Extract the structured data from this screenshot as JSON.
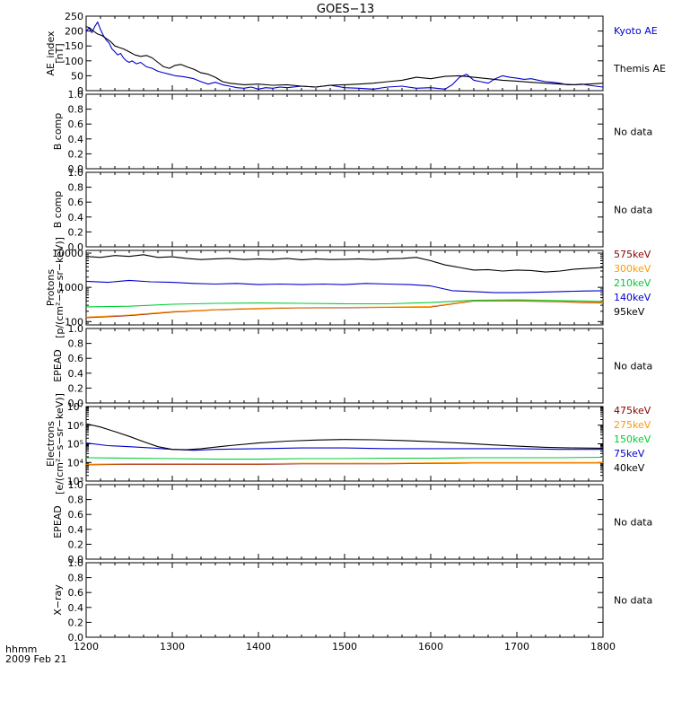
{
  "figure": {
    "title": "GOES−13",
    "time_axis": {
      "label": "hhmm",
      "date": "2009 Feb 21",
      "ticks": [
        "1200",
        "1300",
        "1400",
        "1500",
        "1600",
        "1700",
        "1800"
      ],
      "range_minutes": [
        720,
        1080
      ]
    }
  },
  "chart_data": [
    {
      "id": "ae",
      "type": "line",
      "ylabel_lines": [
        "AE_index",
        "[nT]"
      ],
      "ylim": [
        0,
        250
      ],
      "yticks": [
        "0",
        "50",
        "100",
        "150",
        "200",
        "250"
      ],
      "series": [
        {
          "name": "Kyoto AE",
          "color": "#0000cc",
          "t": [
            720,
            722,
            724,
            726,
            728,
            730,
            732,
            734,
            736,
            738,
            740,
            742,
            744,
            746,
            748,
            750,
            752,
            755,
            758,
            762,
            766,
            770,
            774,
            778,
            782,
            786,
            790,
            795,
            800,
            805,
            810,
            815,
            820,
            825,
            830,
            835,
            840,
            845,
            850,
            855,
            860,
            870,
            880,
            890,
            900,
            910,
            920,
            930,
            940,
            950,
            960,
            970,
            975,
            980,
            985,
            990,
            995,
            1000,
            1005,
            1010,
            1015,
            1020,
            1025,
            1030,
            1035,
            1040,
            1045,
            1050,
            1055,
            1060,
            1065,
            1070,
            1075,
            1080
          ],
          "values": [
            200,
            210,
            195,
            215,
            230,
            205,
            185,
            170,
            160,
            140,
            130,
            120,
            125,
            110,
            100,
            95,
            100,
            90,
            95,
            80,
            75,
            65,
            60,
            55,
            50,
            48,
            45,
            40,
            30,
            22,
            28,
            20,
            15,
            10,
            8,
            12,
            5,
            10,
            8,
            12,
            10,
            15,
            12,
            18,
            10,
            8,
            5,
            12,
            15,
            8,
            10,
            5,
            20,
            45,
            55,
            35,
            30,
            25,
            40,
            50,
            45,
            42,
            38,
            40,
            35,
            30,
            28,
            25,
            20,
            20,
            22,
            18,
            15,
            12
          ]
        },
        {
          "name": "Themis AE",
          "color": "#000000",
          "t": [
            720,
            722,
            725,
            728,
            731,
            734,
            737,
            740,
            743,
            746,
            750,
            754,
            758,
            762,
            766,
            770,
            774,
            778,
            782,
            786,
            790,
            795,
            800,
            805,
            810,
            815,
            820,
            830,
            840,
            850,
            860,
            870,
            880,
            890,
            900,
            910,
            920,
            930,
            940,
            950,
            960,
            970,
            980,
            990,
            1000,
            1010,
            1020,
            1030,
            1040,
            1050,
            1060,
            1070,
            1080
          ],
          "values": [
            215,
            212,
            200,
            190,
            185,
            175,
            165,
            150,
            145,
            140,
            130,
            120,
            115,
            118,
            110,
            95,
            80,
            75,
            85,
            88,
            80,
            72,
            60,
            55,
            45,
            30,
            25,
            20,
            22,
            18,
            20,
            15,
            12,
            18,
            20,
            22,
            25,
            30,
            35,
            45,
            40,
            48,
            50,
            45,
            40,
            35,
            32,
            28,
            25,
            22,
            20,
            22,
            25
          ]
        }
      ],
      "legend": [
        "Kyoto AE",
        "Themis AE"
      ]
    },
    {
      "id": "bcomp1",
      "type": "line",
      "ylabel_lines": [
        "B comp"
      ],
      "ylim": [
        0,
        1
      ],
      "yticks": [
        "0.0",
        "0.2",
        "0.4",
        "0.6",
        "0.8",
        "1.0"
      ],
      "series": [],
      "nodata": "No data"
    },
    {
      "id": "bcomp2",
      "type": "line",
      "ylabel_lines": [
        "B comp"
      ],
      "ylim": [
        0,
        1
      ],
      "yticks": [
        "0.0",
        "0.2",
        "0.4",
        "0.6",
        "0.8",
        "1.0"
      ],
      "series": [],
      "nodata": "No data"
    },
    {
      "id": "protons",
      "type": "line",
      "yscale": "log",
      "ylabel_lines": [
        "Protons",
        "[p/(cm²−s−sr−keV)]"
      ],
      "ylim": [
        80,
        12000
      ],
      "yticks": [
        "100",
        "1000",
        "10000"
      ],
      "series": [
        {
          "name": "575keV",
          "color": "#8b0000",
          "t": [
            720,
            750,
            780,
            810,
            840,
            870,
            900,
            930,
            960,
            990,
            1020,
            1050,
            1080
          ],
          "values": [
            130,
            150,
            190,
            220,
            240,
            250,
            255,
            260,
            270,
            400,
            400,
            380,
            350
          ]
        },
        {
          "name": "300keV",
          "color": "#ff9900",
          "t": [
            720,
            750,
            780,
            810,
            840,
            870,
            900,
            930,
            960,
            990,
            1020,
            1050,
            1080
          ],
          "values": [
            135,
            155,
            195,
            225,
            245,
            255,
            260,
            265,
            275,
            410,
            410,
            390,
            360
          ]
        },
        {
          "name": "210keV",
          "color": "#00cc33",
          "t": [
            720,
            750,
            780,
            810,
            840,
            870,
            900,
            930,
            960,
            990,
            1020,
            1050,
            1080
          ],
          "values": [
            270,
            280,
            320,
            340,
            350,
            340,
            330,
            330,
            360,
            420,
            430,
            410,
            390
          ]
        },
        {
          "name": "140keV",
          "color": "#0000cc",
          "t": [
            720,
            735,
            750,
            765,
            780,
            795,
            810,
            825,
            840,
            855,
            870,
            885,
            900,
            915,
            930,
            945,
            960,
            975,
            990,
            1005,
            1020,
            1035,
            1050,
            1065,
            1080
          ],
          "values": [
            1500,
            1400,
            1600,
            1450,
            1400,
            1300,
            1250,
            1300,
            1200,
            1250,
            1200,
            1250,
            1200,
            1300,
            1250,
            1200,
            1100,
            800,
            750,
            700,
            700,
            720,
            750,
            780,
            800
          ]
        },
        {
          "name": "95keV",
          "color": "#000000",
          "t": [
            720,
            730,
            740,
            750,
            760,
            770,
            780,
            790,
            800,
            810,
            820,
            830,
            840,
            850,
            860,
            870,
            880,
            890,
            900,
            910,
            920,
            930,
            940,
            950,
            960,
            970,
            980,
            990,
            1000,
            1010,
            1020,
            1030,
            1040,
            1050,
            1060,
            1070,
            1080
          ],
          "values": [
            8000,
            7500,
            8500,
            8000,
            9000,
            7500,
            7800,
            7000,
            6500,
            6800,
            7000,
            6500,
            6800,
            6600,
            7000,
            6400,
            6800,
            6500,
            6600,
            6800,
            6500,
            6800,
            7000,
            7500,
            6000,
            4500,
            3800,
            3200,
            3300,
            3000,
            3200,
            3100,
            2800,
            3000,
            3400,
            3600,
            3800
          ]
        }
      ],
      "legend": [
        "575keV",
        "300keV",
        "210keV",
        "140keV",
        "95keV"
      ]
    },
    {
      "id": "epead1",
      "type": "line",
      "ylabel_lines": [
        "EPEAD"
      ],
      "ylim": [
        0,
        1
      ],
      "yticks": [
        "0.0",
        "0.2",
        "0.4",
        "0.6",
        "0.8",
        "1.0"
      ],
      "series": [],
      "nodata": "No data"
    },
    {
      "id": "electrons",
      "type": "line",
      "yscale": "log",
      "ylabel_lines": [
        "Electrons",
        "[e/(cm²−s−sr−keV)]"
      ],
      "ylim": [
        1000,
        10000000
      ],
      "yticks": [
        "10³",
        "10⁴",
        "10⁵",
        "10⁶",
        "10⁷"
      ],
      "series": [
        {
          "name": "475keV",
          "color": "#8b0000",
          "t": [
            720,
            750,
            780,
            810,
            840,
            870,
            900,
            930,
            960,
            990,
            1020,
            1050,
            1080
          ],
          "values": [
            7500,
            8000,
            8000,
            8000,
            8000,
            8500,
            8500,
            8500,
            9000,
            9500,
            9500,
            9500,
            9500
          ]
        },
        {
          "name": "275keV",
          "color": "#ff9900",
          "t": [
            720,
            750,
            780,
            810,
            840,
            870,
            900,
            930,
            960,
            990,
            1020,
            1050,
            1080
          ],
          "values": [
            8000,
            8500,
            8500,
            8500,
            8500,
            9000,
            9000,
            9000,
            9500,
            10000,
            10000,
            10000,
            10000
          ]
        },
        {
          "name": "150keV",
          "color": "#00cc33",
          "t": [
            720,
            750,
            780,
            810,
            840,
            870,
            900,
            930,
            960,
            990,
            1020,
            1050,
            1080
          ],
          "values": [
            18000,
            17000,
            16000,
            15000,
            15000,
            16000,
            16000,
            17000,
            17000,
            18000,
            18000,
            18000,
            19000
          ]
        },
        {
          "name": "75keV",
          "color": "#0000cc",
          "t": [
            720,
            735,
            750,
            765,
            780,
            795,
            810,
            840,
            870,
            900,
            930,
            960,
            990,
            1020,
            1050,
            1080
          ],
          "values": [
            110000,
            80000,
            70000,
            60000,
            50000,
            45000,
            50000,
            55000,
            60000,
            60000,
            55000,
            55000,
            55000,
            55000,
            50000,
            50000
          ]
        },
        {
          "name": "40keV",
          "color": "#000000",
          "t": [
            720,
            730,
            740,
            750,
            760,
            770,
            780,
            790,
            800,
            820,
            840,
            860,
            880,
            900,
            920,
            940,
            960,
            980,
            1000,
            1020,
            1040,
            1060,
            1080
          ],
          "values": [
            1200000,
            800000,
            450000,
            250000,
            130000,
            70000,
            50000,
            48000,
            55000,
            80000,
            110000,
            140000,
            160000,
            170000,
            165000,
            150000,
            130000,
            110000,
            90000,
            75000,
            65000,
            60000,
            58000
          ]
        }
      ],
      "legend": [
        "475keV",
        "275keV",
        "150keV",
        "75keV",
        "40keV"
      ]
    },
    {
      "id": "epead2",
      "type": "line",
      "ylabel_lines": [
        "EPEAD"
      ],
      "ylim": [
        0,
        1
      ],
      "yticks": [
        "0.0",
        "0.2",
        "0.4",
        "0.6",
        "0.8",
        "1.0"
      ],
      "series": [],
      "nodata": "No data"
    },
    {
      "id": "xray",
      "type": "line",
      "ylabel_lines": [
        "X−ray"
      ],
      "ylim": [
        0,
        1
      ],
      "yticks": [
        "0.0",
        "0.2",
        "0.4",
        "0.6",
        "0.8",
        "1.0"
      ],
      "series": [],
      "nodata": "No data"
    }
  ]
}
